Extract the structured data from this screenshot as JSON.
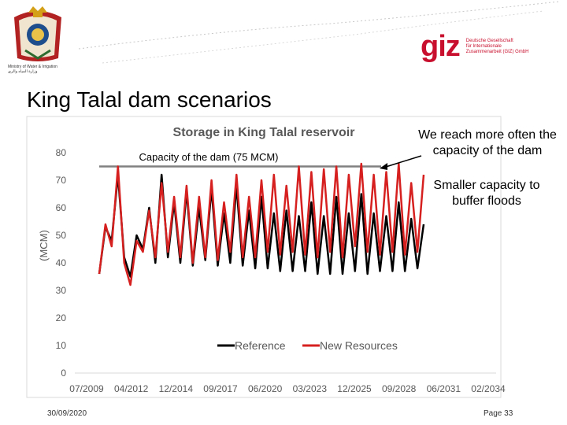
{
  "header": {
    "ministry_lines": [
      "Ministry of Water & Irrigation",
      "وزارة المياه والري"
    ],
    "partner_logo_word": "giz",
    "partner_logo_lines": [
      "Deutsche Gesellschaft",
      "für Internationale",
      "Zusammenarbeit (GIZ) GmbH"
    ],
    "crest_icon": "royal-crest-icon"
  },
  "slide": {
    "title": "King Talal dam scenarios"
  },
  "annotations": {
    "capacity_note": "We reach more often the capacity of the dam",
    "buffer_note": "Smaller capacity to buffer floods"
  },
  "chart_data": {
    "type": "line",
    "title": "Storage in King Talal reservoir",
    "xlabel": "",
    "ylabel": "(MCM)",
    "ylim": [
      0,
      80
    ],
    "yticks": [
      0,
      10,
      20,
      30,
      40,
      50,
      60,
      70,
      80
    ],
    "xticks": [
      "07/2009",
      "04/2012",
      "12/2014",
      "09/2017",
      "06/2020",
      "03/2023",
      "12/2025",
      "09/2028",
      "06/2031",
      "02/2034"
    ],
    "xlim": [
      "07/2009",
      "02/2034"
    ],
    "grid": false,
    "legend_position": "bottom-center",
    "capacity_line": {
      "label": "Capacity of the dam (75 MCM)",
      "value": 75,
      "color": "#808080"
    },
    "series": [
      {
        "name": "Reference",
        "color": "#000000",
        "cycles": [
          [
            36,
            53,
            48,
            72
          ],
          [
            42,
            35,
            50
          ],
          [
            45,
            60
          ],
          [
            40,
            72
          ],
          [
            42,
            62
          ],
          [
            40,
            66
          ],
          [
            39,
            60
          ],
          [
            41,
            67
          ],
          [
            39,
            58
          ],
          [
            40,
            68
          ],
          [
            39,
            59
          ],
          [
            38,
            64
          ],
          [
            38,
            58
          ],
          [
            37,
            59
          ],
          [
            37,
            57
          ],
          [
            37,
            62
          ],
          [
            36,
            57
          ],
          [
            36,
            64
          ],
          [
            36,
            58
          ],
          [
            37,
            65
          ],
          [
            36,
            58
          ],
          [
            37,
            57
          ],
          [
            37,
            62
          ],
          [
            37,
            56
          ],
          [
            38,
            54
          ]
        ]
      },
      {
        "name": "New Resources",
        "color": "#d62020",
        "cycles": [
          [
            36,
            54,
            46,
            75
          ],
          [
            40,
            32,
            48
          ],
          [
            44,
            59
          ],
          [
            42,
            69
          ],
          [
            44,
            64
          ],
          [
            42,
            68
          ],
          [
            40,
            64
          ],
          [
            42,
            70
          ],
          [
            41,
            62
          ],
          [
            44,
            72
          ],
          [
            42,
            64
          ],
          [
            42,
            70
          ],
          [
            44,
            72
          ],
          [
            43,
            68
          ],
          [
            44,
            75
          ],
          [
            43,
            73
          ],
          [
            42,
            74
          ],
          [
            44,
            75
          ],
          [
            42,
            72
          ],
          [
            46,
            76
          ],
          [
            44,
            72
          ],
          [
            43,
            73
          ],
          [
            44,
            76
          ],
          [
            43,
            69
          ],
          [
            44,
            72
          ]
        ]
      }
    ]
  },
  "footer": {
    "date": "30/09/2020",
    "page": "Page 33"
  }
}
